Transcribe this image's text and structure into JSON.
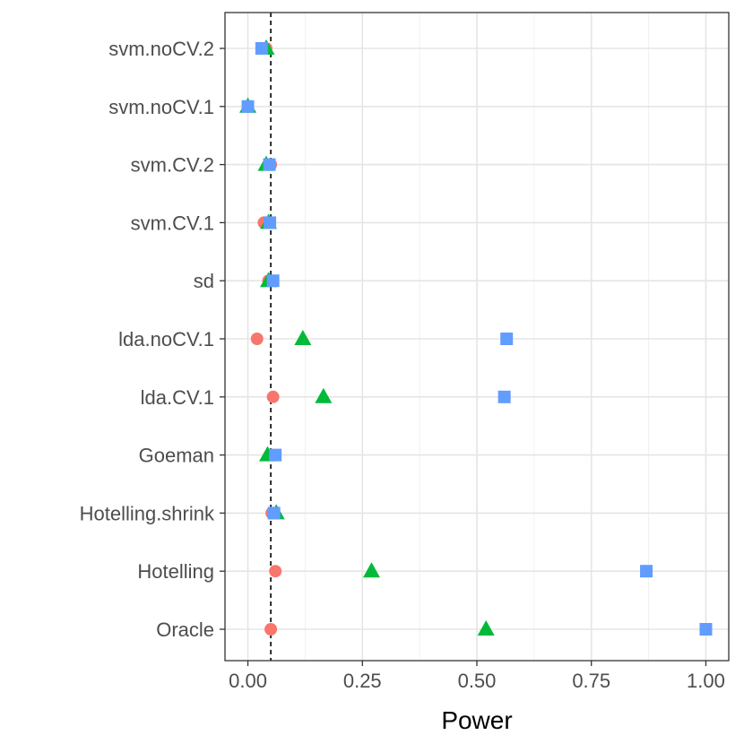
{
  "chart_data": {
    "type": "scatter",
    "title": "",
    "xlabel": "Power",
    "ylabel": "",
    "xlim": [
      -0.05,
      1.05
    ],
    "x_ticks": [
      0.0,
      0.25,
      0.5,
      0.75,
      1.0
    ],
    "x_tick_labels": [
      "0.00",
      "0.25",
      "0.50",
      "0.75",
      "1.00"
    ],
    "categories": [
      "svm.noCV.2",
      "svm.noCV.1",
      "svm.CV.2",
      "svm.CV.1",
      "sd",
      "lda.noCV.1",
      "lda.CV.1",
      "Goeman",
      "Hotelling.shrink",
      "Hotelling",
      "Oracle"
    ],
    "reference_line": {
      "x": 0.05,
      "style": "dashed",
      "color": "#000000"
    },
    "grid": true,
    "legend": "none",
    "series": [
      {
        "name": "series-1",
        "shape": "circle",
        "color": "#F8766D",
        "values": [
          0.04,
          0.0,
          0.05,
          0.035,
          0.045,
          0.02,
          0.055,
          0.05,
          0.052,
          0.06,
          0.05
        ]
      },
      {
        "name": "series-2",
        "shape": "triangle",
        "color": "#00BA38",
        "values": [
          0.04,
          0.0,
          0.04,
          0.045,
          0.045,
          0.12,
          0.165,
          0.043,
          0.062,
          0.27,
          0.52
        ]
      },
      {
        "name": "series-3",
        "shape": "square",
        "color": "#619CFF",
        "values": [
          0.03,
          0.0,
          0.047,
          0.048,
          0.055,
          0.565,
          0.56,
          0.06,
          0.057,
          0.87,
          1.0
        ]
      }
    ]
  }
}
